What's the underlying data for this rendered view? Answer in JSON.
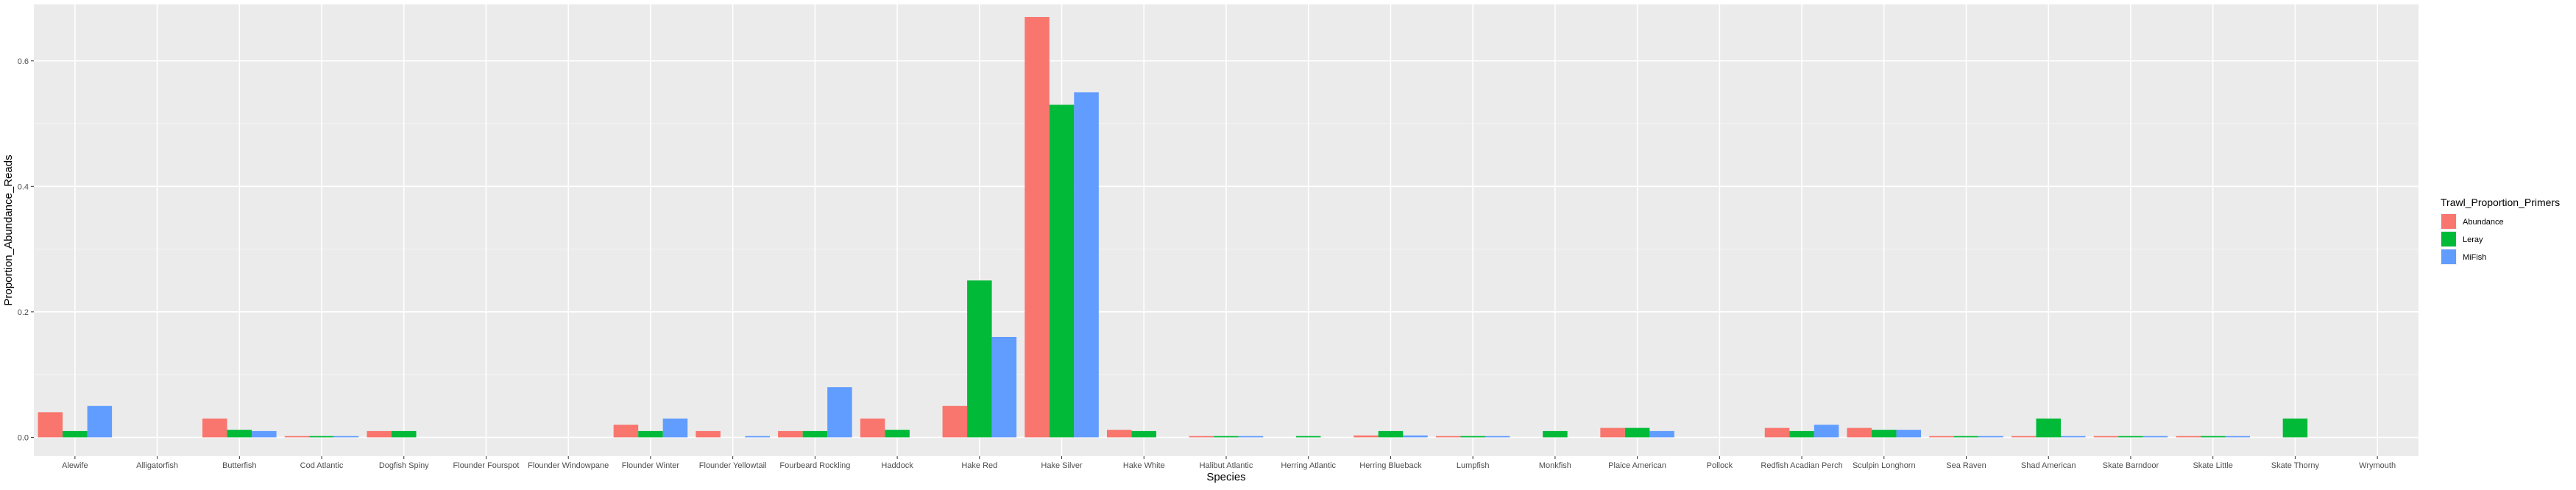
{
  "chart_data": {
    "type": "bar",
    "title": "",
    "xlabel": "Species",
    "ylabel": "Proportion_Abundance_Reads",
    "ylim": [
      -0.03,
      0.69
    ],
    "yticks": [
      0.0,
      0.2,
      0.4,
      0.6
    ],
    "ytick_labels": [
      "0.0",
      "0.2",
      "0.4",
      "0.6"
    ],
    "grid": true,
    "legend": {
      "title": "Trawl_Proportion_Primers",
      "placement": "right"
    },
    "categories": [
      "Alewife",
      "Alligatorfish",
      "Butterfish",
      "Cod Atlantic",
      "Dogfish Spiny",
      "Flounder Fourspot",
      "Flounder Windowpane",
      "Flounder Winter",
      "Flounder Yellowtail",
      "Fourbeard Rockling",
      "Haddock",
      "Hake Red",
      "Hake Silver",
      "Hake White",
      "Halibut Atlantic",
      "Herring Atlantic",
      "Herring Blueback",
      "Lumpfish",
      "Monkfish",
      "Plaice American",
      "Pollock",
      "Redfish Acadian Perch",
      "Sculpin Longhorn",
      "Sea Raven",
      "Shad American",
      "Skate Barndoor",
      "Skate Little",
      "Skate Thorny",
      "Wrymouth"
    ],
    "series": [
      {
        "name": "Abundance",
        "color": "#F8766D",
        "values": [
          0.04,
          0,
          0.03,
          0.002,
          0.01,
          0,
          0,
          0.02,
          0.01,
          0.01,
          0.03,
          0.05,
          0.67,
          0.012,
          0.002,
          0,
          0.003,
          0.002,
          0,
          0.015,
          0,
          0.015,
          0.015,
          0.002,
          0.002,
          0.002,
          0.002,
          0,
          0
        ]
      },
      {
        "name": "Leray",
        "color": "#00BA38",
        "values": [
          0.01,
          0,
          0.012,
          0.002,
          0.01,
          0,
          0,
          0.01,
          0,
          0.01,
          0.012,
          0.25,
          0.53,
          0.01,
          0.002,
          0.002,
          0.01,
          0.002,
          0.01,
          0.015,
          0,
          0.01,
          0.012,
          0.002,
          0.03,
          0.002,
          0.002,
          0.03,
          0
        ]
      },
      {
        "name": "MiFish",
        "color": "#619CFF",
        "values": [
          0.05,
          0,
          0.01,
          0.002,
          0,
          0,
          0,
          0.03,
          0.002,
          0.08,
          0,
          0.16,
          0.55,
          0,
          0.002,
          0,
          0.003,
          0.002,
          0,
          0.01,
          0,
          0.02,
          0.012,
          0.002,
          0.002,
          0.002,
          0.002,
          0,
          0
        ]
      }
    ]
  }
}
